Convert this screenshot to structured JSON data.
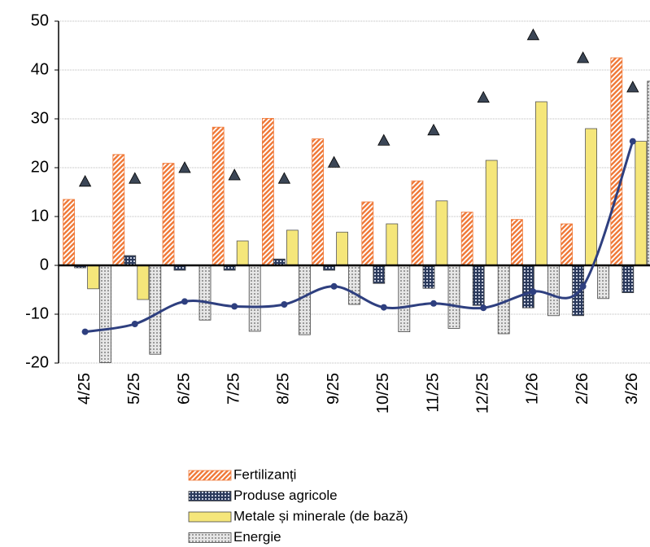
{
  "chart_data": {
    "type": "bar",
    "categories": [
      "4/25",
      "5/25",
      "6/25",
      "7/25",
      "8/25",
      "9/25",
      "10/25",
      "11/25",
      "12/25",
      "1/26",
      "2/26",
      "3/26"
    ],
    "series": [
      {
        "name": "Fertilizanți",
        "color": "#f07a3a",
        "pattern": "hatch",
        "values": [
          13.5,
          22.7,
          20.9,
          28.3,
          30.1,
          25.9,
          13.0,
          17.3,
          10.9,
          9.4,
          8.5,
          42.5
        ]
      },
      {
        "name": "Produse agricole",
        "color": "#2b3a5c",
        "pattern": "grid",
        "values": [
          -0.5,
          2.0,
          -1.0,
          -1.0,
          1.3,
          -1.0,
          -3.7,
          -4.7,
          -8.2,
          -8.7,
          -10.3,
          -5.6
        ]
      },
      {
        "name": "Metale și minerale (de bază)",
        "color": "#f5e67a",
        "pattern": "solid",
        "values": [
          -4.8,
          -7.0,
          0,
          5.0,
          7.2,
          6.8,
          8.5,
          13.2,
          21.5,
          33.5,
          28.0,
          25.4
        ]
      },
      {
        "name": "Energie",
        "color": "#9a9a9a",
        "pattern": "dots",
        "values": [
          -19.9,
          -18.2,
          -11.2,
          -13.5,
          -14.2,
          -8.0,
          -13.6,
          -12.9,
          -14.0,
          -10.3,
          -6.8,
          37.7
        ]
      }
    ],
    "line": {
      "color": "#2e3f7f",
      "values": [
        -13.6,
        -12.0,
        -7.4,
        -8.4,
        -8.0,
        -4.3,
        -8.6,
        -7.8,
        -8.7,
        -5.4,
        -4.3,
        25.4
      ]
    },
    "markers": {
      "color": "#3b4656",
      "values": [
        17.2,
        17.8,
        20.0,
        18.5,
        17.8,
        21.1,
        25.6,
        27.7,
        34.4,
        47.2,
        42.5,
        36.5
      ]
    },
    "ylim": [
      -20,
      50
    ],
    "yticks": [
      -20,
      -10,
      0,
      10,
      20,
      30,
      40,
      50
    ],
    "grid": true,
    "legend": "bottom"
  }
}
